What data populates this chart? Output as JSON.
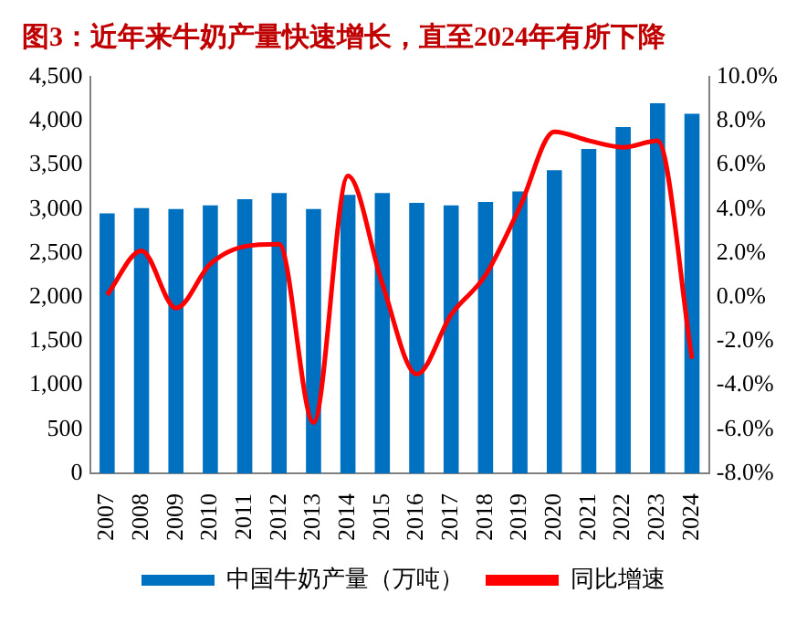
{
  "chart_data": {
    "type": "bar",
    "title": "图3：近年来牛奶产量快速增长，直至2024年有所下降",
    "categories": [
      "2007",
      "2008",
      "2009",
      "2010",
      "2011",
      "2012",
      "2013",
      "2014",
      "2015",
      "2016",
      "2017",
      "2018",
      "2019",
      "2020",
      "2021",
      "2022",
      "2023",
      "2024"
    ],
    "series": [
      {
        "name": "中国牛奶产量（万吨）",
        "color": "#0070c0",
        "values": [
          2950,
          3010,
          3000,
          3040,
          3110,
          3180,
          3000,
          3160,
          3180,
          3070,
          3040,
          3080,
          3200,
          3440,
          3680,
          3930,
          4200,
          4080
        ]
      },
      {
        "name": "同比增速",
        "type": "line",
        "axis": "y2",
        "color": "#ff0000",
        "values": [
          0.1,
          2.1,
          -0.5,
          1.5,
          2.3,
          2.4,
          -5.7,
          5.5,
          0.6,
          -3.5,
          -0.8,
          1.0,
          4.1,
          7.5,
          7.1,
          6.8,
          7.1,
          -2.8
        ]
      }
    ],
    "ylim": [
      0,
      4500
    ],
    "yticks": [
      0,
      {
        "value": 500,
        "label": "500"
      },
      {
        "value": 1000,
        "label": "1,000"
      },
      {
        "value": 1500,
        "label": "1,500"
      },
      {
        "value": 2000,
        "label": "2,000"
      },
      {
        "value": 2500,
        "label": "2,500"
      },
      {
        "value": 3000,
        "label": "3,000"
      },
      {
        "value": 3500,
        "label": "3,500"
      },
      {
        "value": 4000,
        "label": "4,000"
      },
      {
        "value": 4500,
        "label": "4,500"
      }
    ],
    "y2lim": [
      -8,
      10
    ],
    "y2ticks": [
      {
        "value": -8,
        "label": "-8.0%"
      },
      {
        "value": -6,
        "label": "-6.0%"
      },
      {
        "value": -4,
        "label": "-4.0%"
      },
      {
        "value": -2,
        "label": "-2.0%"
      },
      {
        "value": 0,
        "label": "0.0%"
      },
      {
        "value": 2,
        "label": "2.0%"
      },
      {
        "value": 4,
        "label": "4.0%"
      },
      {
        "value": 6,
        "label": "6.0%"
      },
      {
        "value": 8,
        "label": "8.0%"
      },
      {
        "value": 10,
        "label": "10.0%"
      }
    ],
    "legend": "bottom",
    "grid": false,
    "marker": "none"
  }
}
